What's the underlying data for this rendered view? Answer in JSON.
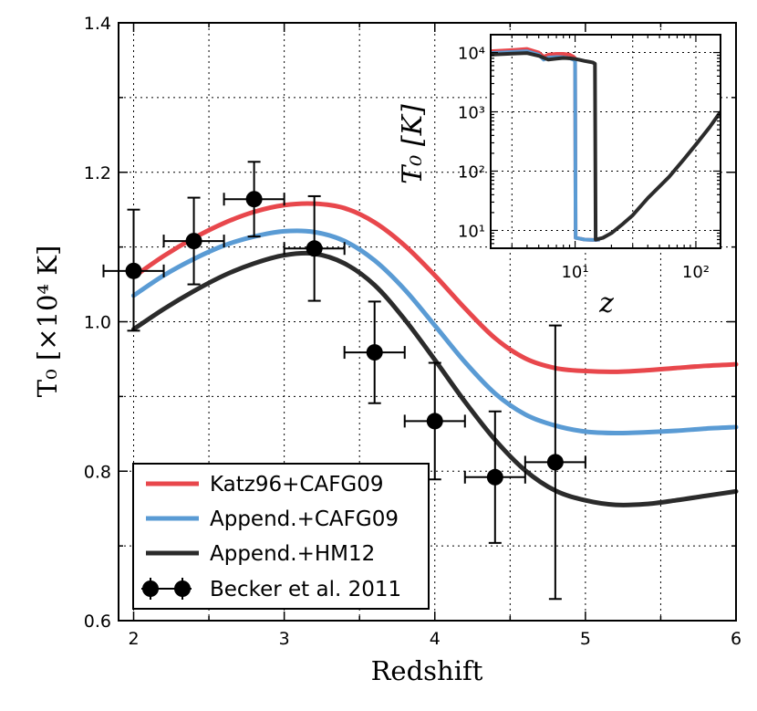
{
  "chart_data": [
    {
      "type": "line",
      "role": "main",
      "xlabel": "Redshift",
      "ylabel": "T₀ [×10⁴ K]",
      "xlim": [
        1.9,
        6.0
      ],
      "ylim": [
        0.6,
        1.4
      ],
      "xticks": [
        2,
        3,
        4,
        5,
        6
      ],
      "yticks": [
        0.6,
        0.8,
        1.0,
        1.2,
        1.4
      ],
      "xtick_labels": [
        "2",
        "3",
        "4",
        "5",
        "6"
      ],
      "ytick_labels": [
        "0.6",
        "0.8",
        "1.0",
        "1.2",
        "1.4"
      ],
      "grid": true,
      "legend_position": "bottom-left",
      "series": [
        {
          "name": "Katz96+CAFG09",
          "color": "#e8474c",
          "x": [
            2.0,
            2.2,
            2.4,
            2.6,
            2.8,
            3.0,
            3.2,
            3.4,
            3.6,
            3.8,
            4.0,
            4.2,
            4.4,
            4.6,
            4.8,
            5.0,
            5.2,
            5.4,
            5.6,
            5.8,
            6.0
          ],
          "y": [
            1.06,
            1.088,
            1.112,
            1.132,
            1.147,
            1.156,
            1.158,
            1.152,
            1.133,
            1.102,
            1.062,
            1.018,
            0.978,
            0.951,
            0.938,
            0.934,
            0.933,
            0.935,
            0.938,
            0.941,
            0.943
          ]
        },
        {
          "name": "Append.+CAFG09",
          "color": "#5a9bd4",
          "x": [
            2.0,
            2.2,
            2.4,
            2.6,
            2.8,
            3.0,
            3.2,
            3.4,
            3.6,
            3.8,
            4.0,
            4.2,
            4.4,
            4.6,
            4.8,
            5.0,
            5.2,
            5.4,
            5.6,
            5.8,
            6.0
          ],
          "y": [
            1.035,
            1.062,
            1.084,
            1.102,
            1.114,
            1.121,
            1.12,
            1.108,
            1.082,
            1.043,
            0.995,
            0.946,
            0.904,
            0.876,
            0.861,
            0.853,
            0.851,
            0.852,
            0.854,
            0.857,
            0.859
          ]
        },
        {
          "name": "Append.+HM12",
          "color": "#2b2b2b",
          "x": [
            2.0,
            2.2,
            2.4,
            2.6,
            2.8,
            3.0,
            3.2,
            3.4,
            3.6,
            3.8,
            4.0,
            4.2,
            4.4,
            4.6,
            4.8,
            5.0,
            5.2,
            5.4,
            5.6,
            5.8,
            6.0
          ],
          "y": [
            0.99,
            1.017,
            1.041,
            1.062,
            1.078,
            1.089,
            1.091,
            1.078,
            1.049,
            1.003,
            0.949,
            0.893,
            0.842,
            0.801,
            0.774,
            0.761,
            0.755,
            0.756,
            0.761,
            0.767,
            0.773
          ]
        }
      ],
      "data_points": {
        "name": "Becker et al. 2011",
        "color": "#000000",
        "points": [
          {
            "x": 2.0,
            "y": 1.068,
            "xerr": 0.2,
            "yerr_low": 0.08,
            "yerr_high": 0.082
          },
          {
            "x": 2.4,
            "y": 1.108,
            "xerr": 0.2,
            "yerr_low": 0.058,
            "yerr_high": 0.058
          },
          {
            "x": 2.8,
            "y": 1.164,
            "xerr": 0.2,
            "yerr_low": 0.05,
            "yerr_high": 0.05
          },
          {
            "x": 3.2,
            "y": 1.098,
            "xerr": 0.2,
            "yerr_low": 0.07,
            "yerr_high": 0.07
          },
          {
            "x": 3.6,
            "y": 0.959,
            "xerr": 0.2,
            "yerr_low": 0.068,
            "yerr_high": 0.068
          },
          {
            "x": 4.0,
            "y": 0.867,
            "xerr": 0.2,
            "yerr_low": 0.078,
            "yerr_high": 0.078
          },
          {
            "x": 4.4,
            "y": 0.792,
            "xerr": 0.2,
            "yerr_low": 0.088,
            "yerr_high": 0.088
          },
          {
            "x": 4.8,
            "y": 0.812,
            "xerr": 0.2,
            "yerr_low": 0.183,
            "yerr_high": 0.183
          }
        ]
      }
    },
    {
      "type": "line",
      "role": "inset",
      "xlabel": "z",
      "ylabel": "T₀ [K]",
      "xscale": "log",
      "yscale": "log",
      "xlim": [
        2,
        160
      ],
      "ylim": [
        5,
        20000
      ],
      "xtick_labels": [
        "10¹",
        "10²"
      ],
      "ytick_labels": [
        "10¹",
        "10²",
        "10³",
        "10⁴"
      ],
      "grid": true,
      "series": [
        {
          "name": "Katz96+CAFG09",
          "color": "#e8474c",
          "x": [
            2,
            3,
            4,
            5,
            5.5,
            6,
            7,
            8,
            9,
            9.7,
            10.0,
            10.1,
            12,
            14,
            15,
            16
          ],
          "y": [
            10500,
            11000,
            11500,
            10000,
            8500,
            9200,
            9500,
            9500,
            9200,
            8500,
            8000,
            7.5,
            7.0,
            6.9,
            6.9,
            7.0
          ]
        },
        {
          "name": "Append.+CAFG09",
          "color": "#5a9bd4",
          "x": [
            2,
            3,
            4,
            5,
            5.5,
            6,
            7,
            8,
            9,
            9.7,
            10.0,
            10.1,
            12,
            14,
            15,
            16
          ],
          "y": [
            9800,
            10200,
            10500,
            9200,
            7600,
            8200,
            8400,
            8300,
            8000,
            7600,
            7200,
            7.5,
            7.0,
            6.9,
            6.9,
            7.0
          ]
        },
        {
          "name": "Append.+HM12",
          "color": "#2b2b2b",
          "x": [
            2,
            3,
            4,
            5,
            6,
            7,
            8,
            9,
            10,
            11,
            12,
            13,
            14,
            14.6,
            14.8,
            17,
            20,
            25,
            30,
            40,
            60,
            80,
            100,
            130,
            160
          ],
          "y": [
            9200,
            9600,
            9800,
            8800,
            7600,
            7900,
            8100,
            8000,
            7800,
            7500,
            7200,
            7000,
            6800,
            6500,
            7.0,
            7.5,
            9.0,
            13,
            18,
            35,
            80,
            160,
            280,
            550,
            1000
          ]
        }
      ]
    }
  ]
}
